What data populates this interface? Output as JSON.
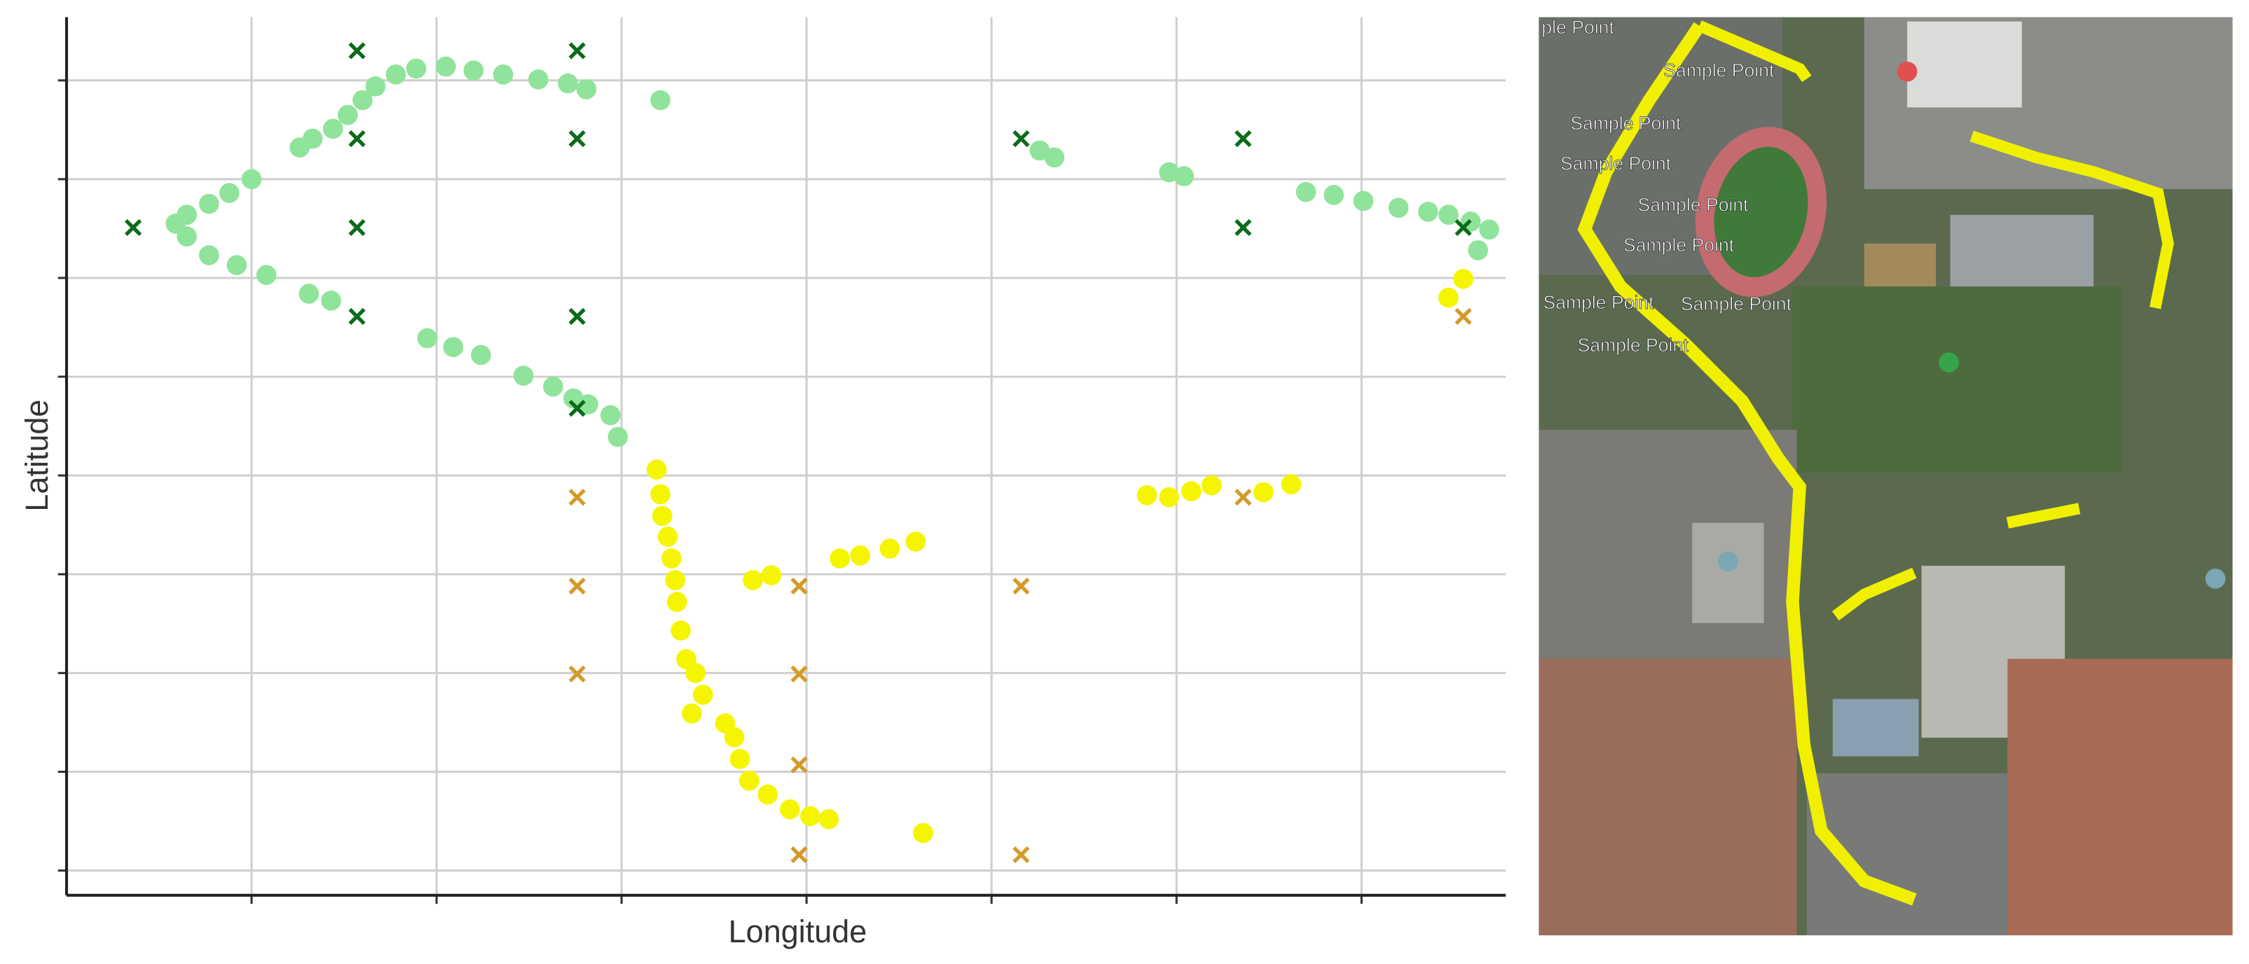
{
  "chart_data": {
    "type": "scatter",
    "xlabel": "Longitude",
    "ylabel": "Latitude",
    "xlim": [
      0,
      7.78
    ],
    "ylim": [
      -0.25,
      8.64
    ],
    "xticks": [
      1,
      2,
      3,
      4,
      5,
      6,
      7
    ],
    "yticks": [
      0,
      1,
      2,
      3,
      4,
      5,
      6,
      7,
      8
    ],
    "grid": true,
    "series": [
      {
        "color": "#90e39a",
        "marker": "circle",
        "x": [
          3.21,
          2.81,
          2.71,
          2.55,
          2.36,
          2.2,
          2.05,
          1.89,
          1.78,
          1.67,
          1.6,
          1.52,
          1.44,
          1.33,
          1.26,
          1.0,
          0.88,
          0.77,
          0.65,
          0.59,
          0.65,
          0.77,
          0.92,
          1.08,
          1.31,
          1.43,
          1.95,
          2.09,
          2.24,
          2.47,
          2.63,
          2.74,
          2.82,
          2.94,
          2.98,
          5.26,
          5.34,
          5.96,
          6.04,
          6.7,
          6.85,
          7.01,
          7.2,
          7.36,
          7.47,
          7.59,
          7.69,
          7.63
        ],
        "values": [
          7.8,
          7.91,
          7.97,
          8.01,
          8.06,
          8.1,
          8.14,
          8.12,
          8.06,
          7.94,
          7.8,
          7.65,
          7.51,
          7.41,
          7.32,
          7.0,
          6.86,
          6.75,
          6.64,
          6.55,
          6.42,
          6.23,
          6.13,
          6.03,
          5.84,
          5.77,
          5.39,
          5.3,
          5.22,
          5.01,
          4.9,
          4.78,
          4.72,
          4.61,
          4.39,
          7.29,
          7.22,
          7.07,
          7.03,
          6.87,
          6.84,
          6.78,
          6.71,
          6.67,
          6.64,
          6.57,
          6.49,
          6.28
        ]
      },
      {
        "color": "#f5f500",
        "marker": "circle",
        "x": [
          3.19,
          3.21,
          3.22,
          3.25,
          3.27,
          3.29,
          3.3,
          3.32,
          3.35,
          3.4,
          3.44,
          3.38,
          3.56,
          3.61,
          3.64,
          3.69,
          3.79,
          3.91,
          4.02,
          4.12,
          4.63,
          3.71,
          3.81,
          4.18,
          4.29,
          4.45,
          4.59,
          5.84,
          5.96,
          6.08,
          6.19,
          6.47,
          6.62,
          7.55,
          7.47
        ],
        "values": [
          4.06,
          3.81,
          3.59,
          3.38,
          3.16,
          2.94,
          2.72,
          2.43,
          2.14,
          2.0,
          1.78,
          1.59,
          1.49,
          1.35,
          1.13,
          0.91,
          0.77,
          0.62,
          0.55,
          0.52,
          0.38,
          2.94,
          2.99,
          3.16,
          3.19,
          3.26,
          3.33,
          3.8,
          3.78,
          3.84,
          3.9,
          3.83,
          3.91,
          5.99,
          5.8
        ]
      },
      {
        "color": "#0b6b1a",
        "marker": "x",
        "x": [
          1.57,
          2.76,
          1.57,
          2.76,
          5.16,
          6.36,
          0.36,
          1.57,
          6.36,
          7.55,
          1.57,
          2.76,
          2.76
        ],
        "values": [
          8.3,
          8.3,
          7.41,
          7.41,
          7.41,
          7.41,
          6.51,
          6.51,
          6.51,
          6.51,
          5.61,
          5.61,
          4.68
        ]
      },
      {
        "color": "#d49a2a",
        "marker": "x",
        "x": [
          7.55,
          2.76,
          6.36,
          2.76,
          3.96,
          5.16,
          2.76,
          3.96,
          3.96,
          3.96,
          5.16
        ],
        "values": [
          5.61,
          3.78,
          3.78,
          2.88,
          2.88,
          2.88,
          1.99,
          1.99,
          1.07,
          0.16,
          0.16
        ]
      }
    ]
  },
  "map": {
    "labels": [
      "ple Point",
      "Sample Point",
      "Sample Point",
      "Sample Point",
      "Sample Point",
      "Sample Point",
      "Sample Point",
      "Sample Point",
      "Sample Point"
    ]
  }
}
